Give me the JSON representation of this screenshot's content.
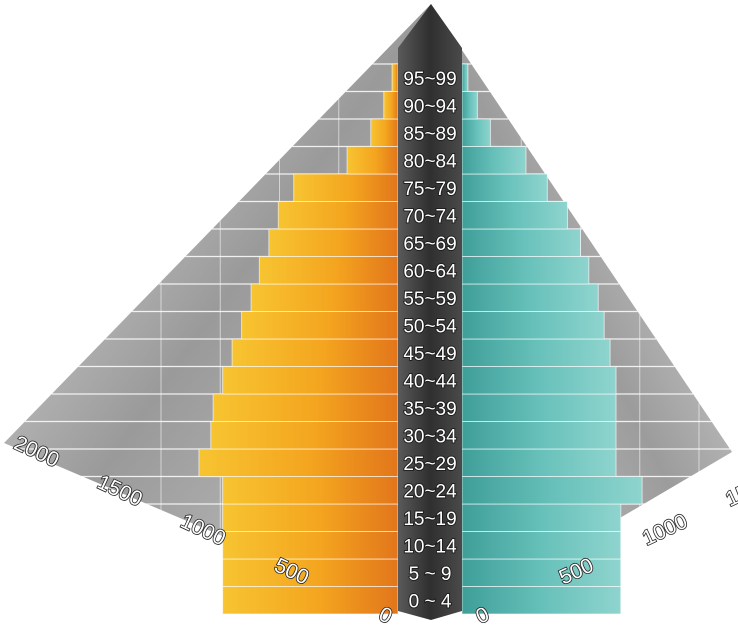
{
  "chart_data": {
    "type": "bar",
    "title": "",
    "xlabel": "",
    "ylabel": "",
    "categories": [
      "0 ~ 4",
      "5 ~ 9",
      "10~14",
      "15~19",
      "20~24",
      "25~29",
      "30~34",
      "35~39",
      "40~44",
      "45~49",
      "50~54",
      "55~59",
      "60~64",
      "65~69",
      "70~74",
      "75~79",
      "80~84",
      "85~89",
      "90~94",
      "95~99"
    ],
    "series": [
      {
        "side": "left",
        "color": "#f5a623",
        "values": [
          1480,
          1480,
          1480,
          1480,
          1480,
          1680,
          1580,
          1560,
          1480,
          1400,
          1320,
          1240,
          1170,
          1090,
          1010,
          880,
          430,
          230,
          120,
          50
        ]
      },
      {
        "side": "right",
        "color": "#4fb3ad",
        "values": [
          1340,
          1340,
          1340,
          1340,
          1520,
          1300,
          1300,
          1300,
          1300,
          1250,
          1200,
          1150,
          1070,
          1000,
          890,
          720,
          540,
          240,
          130,
          50
        ]
      }
    ],
    "xlim": [
      0,
      2000
    ],
    "xticks": [
      0,
      500,
      1000,
      1500,
      2000
    ],
    "tick_labels": [
      "0",
      "500",
      "1000",
      "1500",
      "2000"
    ],
    "grid": true,
    "legend": "none"
  }
}
